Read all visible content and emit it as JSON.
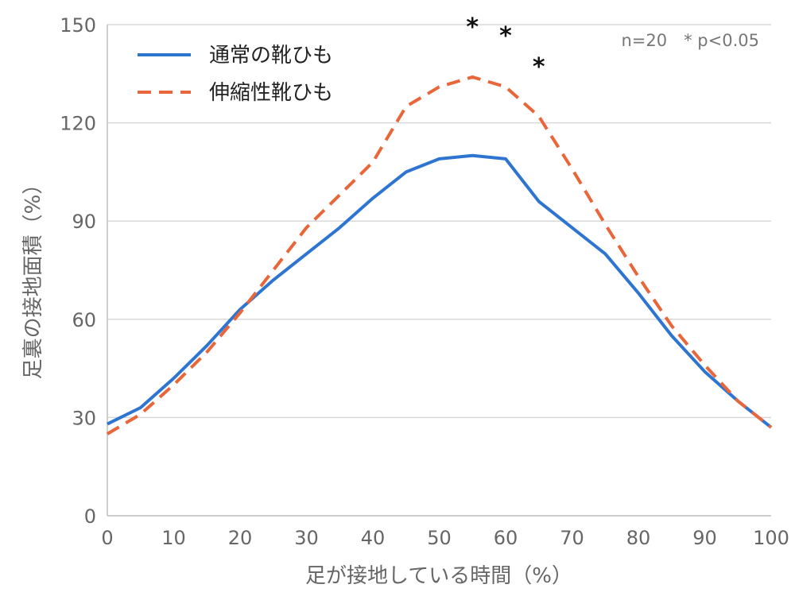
{
  "chart_data": {
    "type": "line",
    "xlabel": "足が接地している時間（%）",
    "ylabel": "足裏の接地面積（%）",
    "xlim": [
      0,
      100
    ],
    "ylim": [
      0,
      150
    ],
    "xticks": [
      0,
      10,
      20,
      30,
      40,
      50,
      60,
      70,
      80,
      90,
      100
    ],
    "yticks": [
      0,
      30,
      60,
      90,
      120,
      150
    ],
    "grid": "horizontal",
    "legend_position": "top-left",
    "annotation": "n=20　* p<0.05",
    "significance_markers": [
      {
        "x": 55,
        "label": "*"
      },
      {
        "x": 60,
        "label": "*"
      },
      {
        "x": 65,
        "label": "*"
      }
    ],
    "x": [
      0,
      5,
      10,
      15,
      20,
      25,
      30,
      35,
      40,
      45,
      50,
      55,
      60,
      65,
      70,
      75,
      80,
      85,
      90,
      95,
      100
    ],
    "series": [
      {
        "name": "通常の靴ひも",
        "color": "#2e75d2",
        "style": "solid",
        "values": [
          28,
          33,
          42,
          52,
          63,
          72,
          80,
          88,
          97,
          105,
          109,
          110,
          109,
          96,
          88,
          80,
          68,
          55,
          44,
          35,
          27
        ]
      },
      {
        "name": "伸縮性靴ひも",
        "color": "#e8663a",
        "style": "dashed",
        "values": [
          25,
          31,
          40,
          50,
          62,
          75,
          88,
          98,
          108,
          125,
          131,
          134,
          131,
          122,
          106,
          89,
          73,
          58,
          46,
          35,
          27
        ]
      }
    ]
  }
}
